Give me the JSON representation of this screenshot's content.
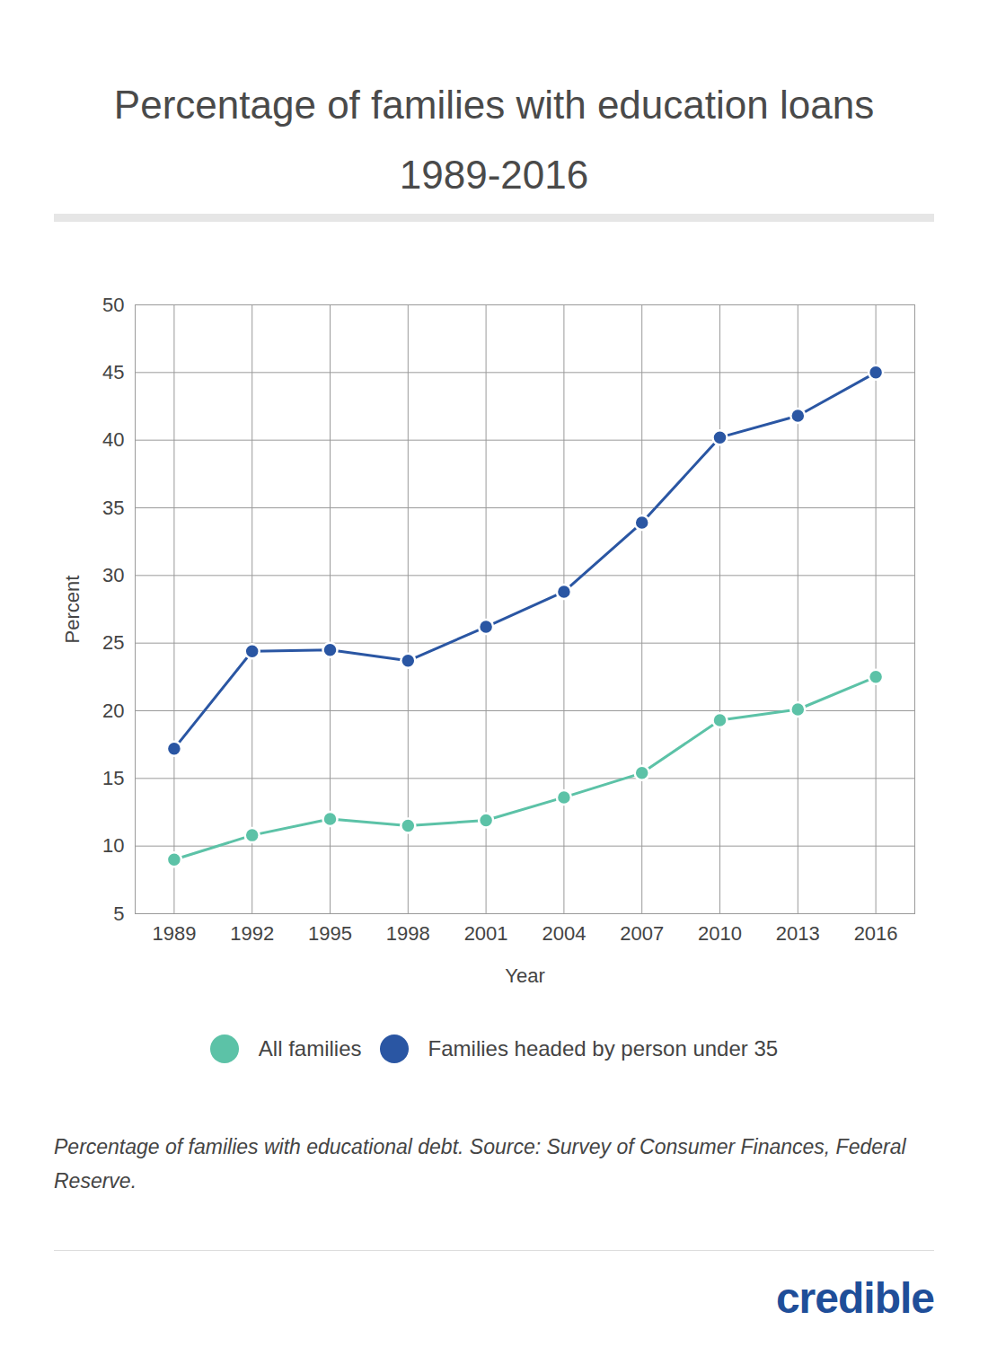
{
  "chart_data": {
    "type": "line",
    "title": "Percentage of families with education loans 1989-2016",
    "caption": "Percentage of families with educational debt. Source: Survey of Consumer Finances, Federal Reserve.",
    "brand": "credible",
    "x_label": "Year",
    "y_label": "Percent",
    "x": [
      1989,
      1992,
      1995,
      1998,
      2001,
      2004,
      2007,
      2010,
      2013,
      2016
    ],
    "series": [
      {
        "name": "All families",
        "color": "#5cc2a7",
        "marker": "circle",
        "values": [
          9.0,
          10.8,
          12.0,
          11.5,
          11.9,
          13.6,
          15.4,
          19.3,
          20.1,
          22.5
        ]
      },
      {
        "name": "Families headed by person under 35",
        "color": "#2a56a3",
        "marker": "circle",
        "values": [
          17.2,
          24.4,
          24.5,
          23.7,
          26.2,
          28.8,
          33.9,
          40.2,
          41.8,
          45.0
        ]
      }
    ],
    "xlim": [
      1987.5,
      2017.5
    ],
    "xticks": [
      1989,
      1992,
      1995,
      1998,
      2001,
      2004,
      2007,
      2010,
      2013,
      2016
    ],
    "ylim": [
      5,
      50
    ],
    "yticks": [
      5,
      10,
      15,
      20,
      25,
      30,
      35,
      40,
      45,
      50
    ],
    "grid": true,
    "legend": "bottom"
  }
}
